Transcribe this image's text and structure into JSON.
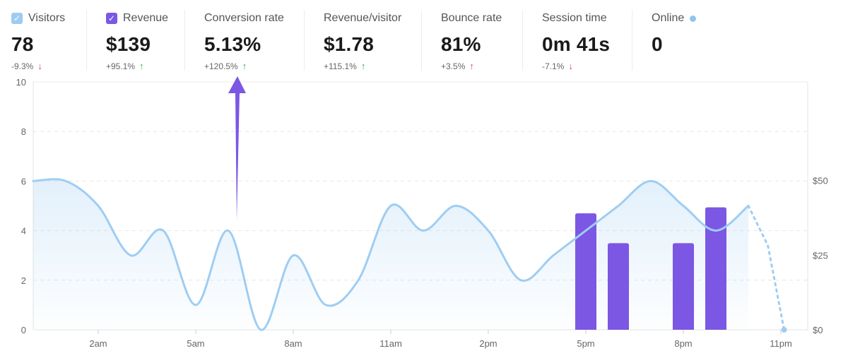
{
  "metrics": [
    {
      "id": "visitors",
      "label": "Visitors",
      "value": "78",
      "delta": "-9.3%",
      "trend": "down",
      "checkbox": true,
      "checkbox_color": "#9ecbf2"
    },
    {
      "id": "revenue",
      "label": "Revenue",
      "value": "$139",
      "delta": "+95.1%",
      "trend": "up",
      "checkbox": true,
      "checkbox_color": "#7b57e4"
    },
    {
      "id": "conversion",
      "label": "Conversion rate",
      "value": "5.13%",
      "delta": "+120.5%",
      "trend": "up"
    },
    {
      "id": "revenue-per-visitor",
      "label": "Revenue/visitor",
      "value": "$1.78",
      "delta": "+115.1%",
      "trend": "up"
    },
    {
      "id": "bounce",
      "label": "Bounce rate",
      "value": "81%",
      "delta": "+3.5%",
      "trend": "up"
    },
    {
      "id": "session",
      "label": "Session time",
      "value": "0m 41s",
      "delta": "-7.1%",
      "trend": "down"
    },
    {
      "id": "online",
      "label": "Online",
      "value": "0",
      "online_dot": true,
      "dot_color": "#8ec4f0"
    }
  ],
  "colors": {
    "line": "#9fcdf2",
    "bar": "#7b57e4",
    "grid": "#e3e3e3",
    "arrow": "#7b57e4",
    "up": "#2fb34a",
    "down": "#e14848"
  },
  "chart_data": {
    "type": "line",
    "left_axis": {
      "ticks": [
        "0",
        "2",
        "4",
        "6",
        "8",
        "10"
      ],
      "range": [
        0,
        10
      ]
    },
    "right_axis": {
      "ticks": [
        "$0",
        "$25",
        "$50"
      ],
      "range": [
        0,
        83
      ]
    },
    "x_ticks": [
      "2am",
      "5am",
      "8am",
      "11am",
      "2pm",
      "5pm",
      "8pm",
      "11pm"
    ],
    "visitors_series": {
      "name": "Visitors",
      "x": [
        0,
        1,
        2,
        3,
        4,
        5,
        6,
        7,
        8,
        9,
        10,
        11,
        12,
        13,
        14,
        15,
        16,
        17,
        18,
        19,
        20,
        21,
        22
      ],
      "values": [
        6,
        6,
        5,
        3,
        4,
        1,
        4,
        0,
        3,
        1,
        2,
        5,
        4,
        5,
        4,
        2,
        3,
        4,
        5,
        6,
        5,
        4,
        5
      ],
      "projected": {
        "x": [
          22,
          22.6,
          23.1
        ],
        "values": [
          5,
          3.4,
          0
        ]
      }
    },
    "revenue_series": {
      "name": "Revenue",
      "x": [
        17,
        18,
        20,
        21
      ],
      "values": [
        39,
        29,
        29,
        41
      ]
    }
  }
}
